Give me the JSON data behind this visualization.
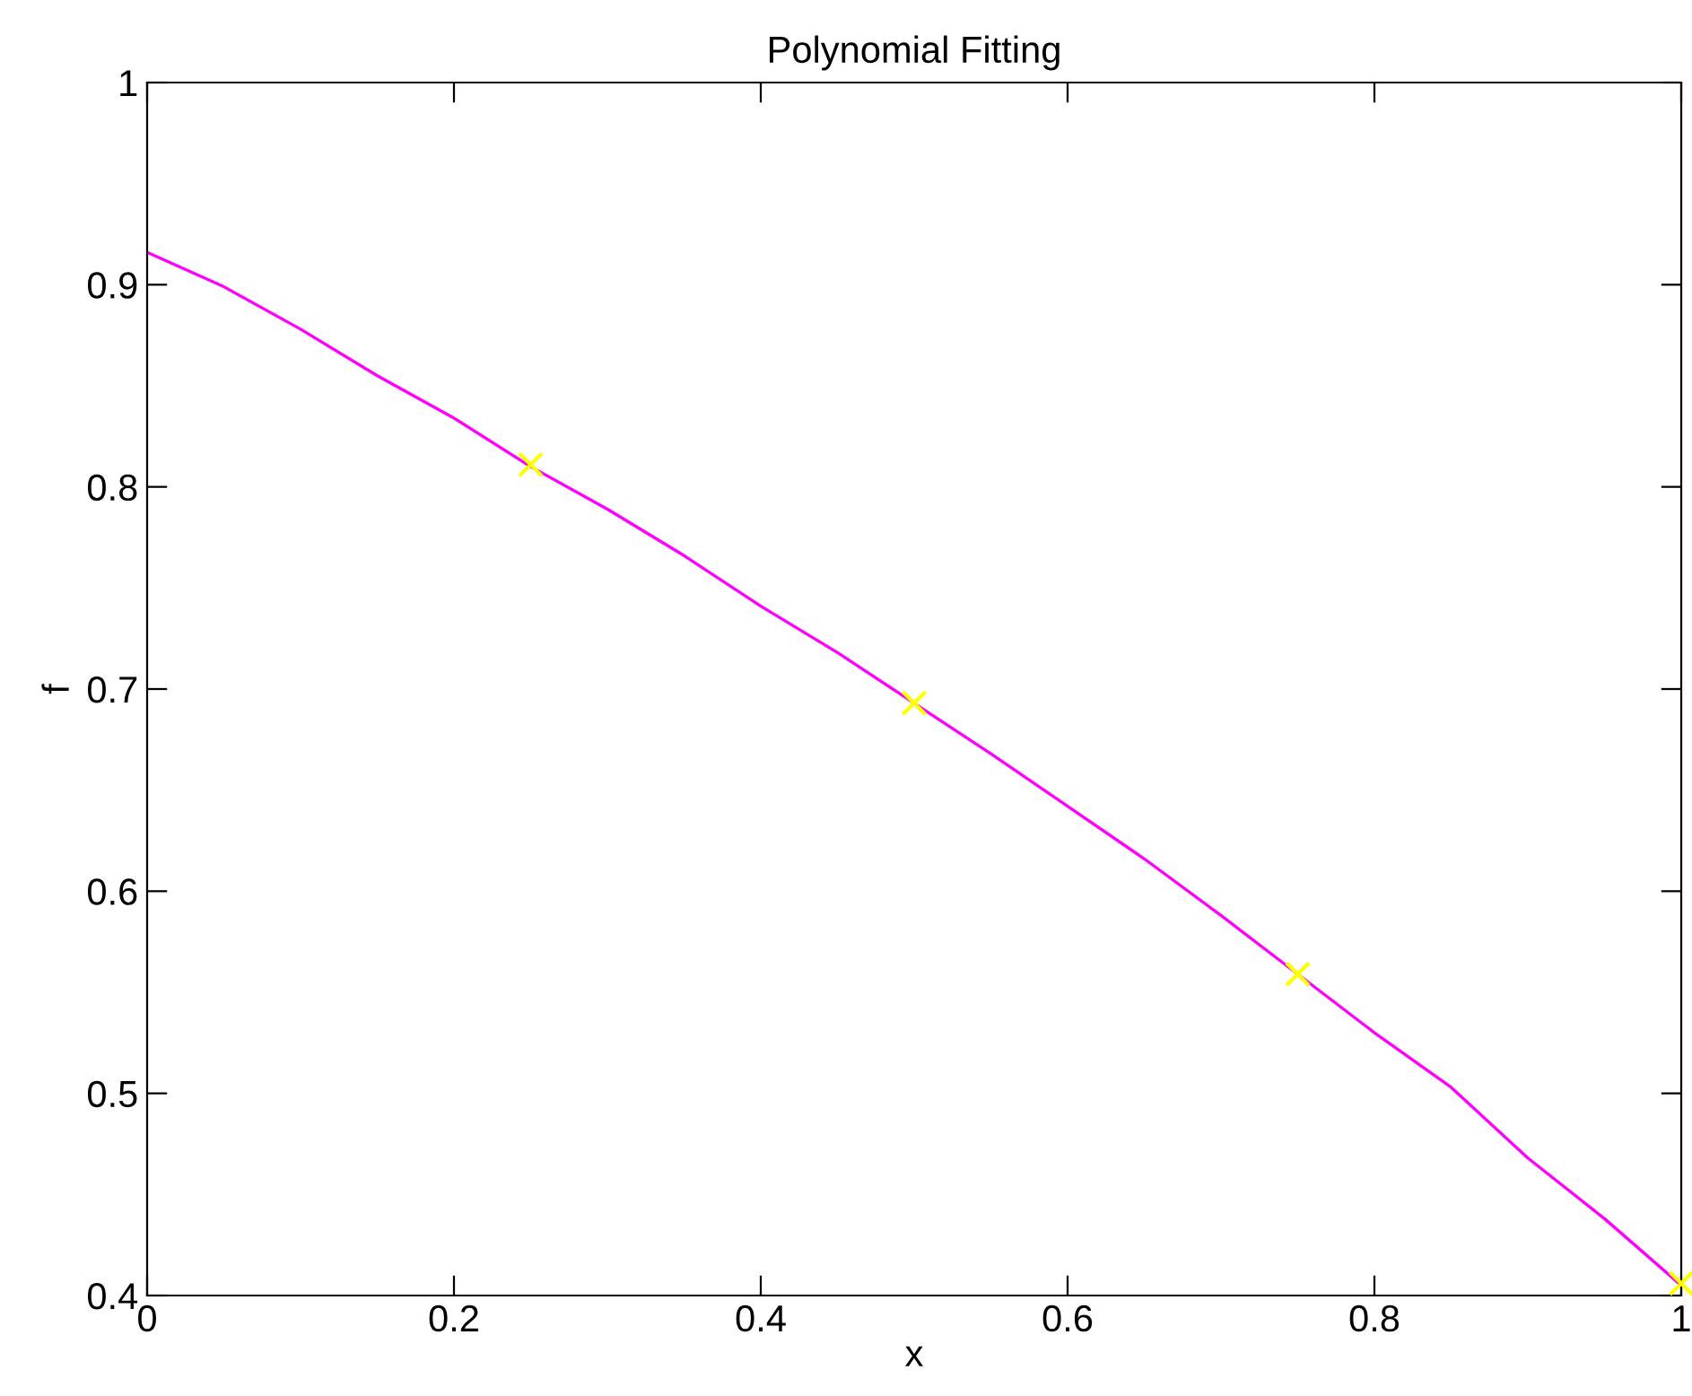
{
  "chart_data": {
    "type": "line",
    "title": "Polynomial Fitting",
    "xlabel": "x",
    "ylabel": "f",
    "xlim": [
      0,
      1
    ],
    "xticks": [
      0,
      0.2,
      0.4,
      0.6,
      0.8,
      1
    ],
    "ylim": [
      0.4,
      1
    ],
    "yticks": [
      0.4,
      0.5,
      0.6,
      0.7,
      0.8,
      0.9,
      1
    ],
    "grid": false,
    "legend": false,
    "series": [
      {
        "color": "#ff00ff",
        "marker": "none",
        "x": [
          0,
          0.05,
          0.1,
          0.15,
          0.2,
          0.25,
          0.3,
          0.35,
          0.4,
          0.45,
          0.5,
          0.55,
          0.6,
          0.65,
          0.7,
          0.75,
          0.8,
          0.85,
          0.9,
          0.95,
          1
        ],
        "values": [
          0.916,
          0.899,
          0.878,
          0.855,
          0.834,
          0.81,
          0.789,
          0.766,
          0.741,
          0.718,
          0.693,
          0.668,
          0.642,
          0.616,
          0.588,
          0.559,
          0.53,
          0.503,
          0.468,
          0.438,
          0.405
        ]
      },
      {
        "type": "scatter",
        "color": "#ffff00",
        "marker": "cross",
        "x": [
          0.25,
          0.5,
          0.75,
          1
        ],
        "values": [
          0.811,
          0.693,
          0.559,
          0.406
        ]
      }
    ]
  }
}
